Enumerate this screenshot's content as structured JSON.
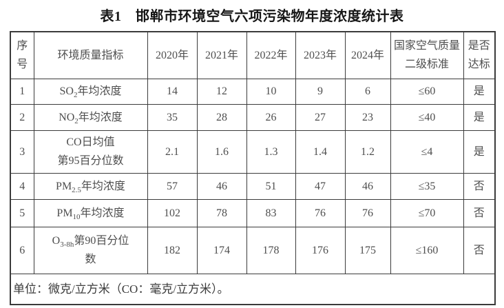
{
  "title": "表1　邯郸市环境空气六项污染物年度浓度统计表",
  "table": {
    "headers": [
      "序号",
      "环境质量指标",
      "2020年",
      "2021年",
      "2022年",
      "2023年",
      "2024年",
      "国家空气质量二级标准",
      "是否达标"
    ],
    "rows": [
      {
        "no": "1",
        "indicator": [
          {
            "t": "SO"
          },
          {
            "sub": "2"
          },
          {
            "t": "年均浓度"
          }
        ],
        "values": [
          "14",
          "12",
          "10",
          "9",
          "6"
        ],
        "standard": "≤60",
        "meets": "是"
      },
      {
        "no": "2",
        "indicator": [
          {
            "t": "NO"
          },
          {
            "sub": "2"
          },
          {
            "t": "年均浓度"
          }
        ],
        "values": [
          "35",
          "28",
          "26",
          "27",
          "23"
        ],
        "standard": "≤40",
        "meets": "是"
      },
      {
        "no": "3",
        "indicator": [
          {
            "t": "CO日均值"
          },
          {
            "br": true
          },
          {
            "t": "第95百分位数"
          }
        ],
        "values": [
          "2.1",
          "1.6",
          "1.3",
          "1.4",
          "1.2"
        ],
        "standard": "≤4",
        "meets": "是"
      },
      {
        "no": "4",
        "indicator": [
          {
            "t": "PM"
          },
          {
            "sub": "2.5"
          },
          {
            "t": "年均浓度"
          }
        ],
        "values": [
          "57",
          "46",
          "51",
          "47",
          "46"
        ],
        "standard": "≤35",
        "meets": "否"
      },
      {
        "no": "5",
        "indicator": [
          {
            "t": "PM"
          },
          {
            "sub": "10"
          },
          {
            "t": "年均浓度"
          }
        ],
        "values": [
          "102",
          "78",
          "83",
          "76",
          "76"
        ],
        "standard": "≤70",
        "meets": "否"
      },
      {
        "no": "6",
        "indicator": [
          {
            "t": "O"
          },
          {
            "sub": "3-8h"
          },
          {
            "t": "第90百分位"
          },
          {
            "br": true
          },
          {
            "t": "数"
          }
        ],
        "values": [
          "182",
          "174",
          "178",
          "176",
          "175"
        ],
        "standard": "≤160",
        "meets": "否"
      }
    ]
  },
  "footer_note": "单位：微克/立方米（CO：毫克/立方米）。"
}
